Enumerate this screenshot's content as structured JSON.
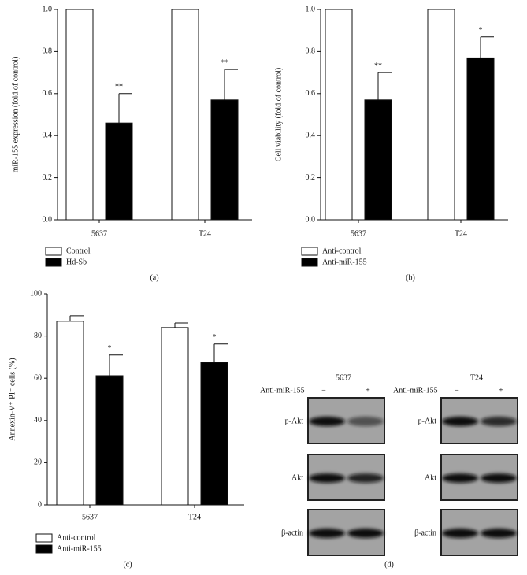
{
  "chart_data": [
    {
      "type": "bar",
      "panel_label": "(a)",
      "y_label": "miR-155 expression (fold of control)",
      "categories": [
        "5637",
        "T24"
      ],
      "series": [
        {
          "name": "Control",
          "color": "#ffffff",
          "values": [
            1.0,
            1.0
          ]
        },
        {
          "name": "Hd-Sb",
          "color": "#000000",
          "values": [
            0.46,
            0.57
          ],
          "errors": [
            0.14,
            0.145
          ],
          "annotations": [
            "**",
            "**"
          ]
        }
      ],
      "ylim": [
        0,
        1.0
      ],
      "yticks": [
        {
          "value": 0,
          "label": "0.0"
        },
        0.2,
        0.4,
        0.6,
        0.8,
        {
          "value": 1,
          "label": "1.0"
        }
      ],
      "grid": false
    },
    {
      "type": "bar",
      "panel_label": "(b)",
      "y_label": "Cell viability (fold of control)",
      "categories": [
        "5637",
        "T24"
      ],
      "series": [
        {
          "name": "Anti-control",
          "color": "#ffffff",
          "values": [
            1.0,
            1.0
          ]
        },
        {
          "name": "Anti-miR-155",
          "color": "#000000",
          "values": [
            0.57,
            0.77
          ],
          "errors": [
            0.13,
            0.1
          ],
          "annotations": [
            "**",
            "*"
          ]
        }
      ],
      "ylim": [
        0,
        1.0
      ],
      "yticks": [
        {
          "value": 0,
          "label": "0.0"
        },
        0.2,
        0.4,
        0.6,
        0.8,
        {
          "value": 1,
          "label": "1.0"
        }
      ],
      "grid": false
    },
    {
      "type": "bar",
      "panel_label": "(c)",
      "y_label": "Annexin-V⁺ PI⁻ cells (%)",
      "categories": [
        "5637",
        "T24"
      ],
      "series": [
        {
          "name": "Anti-control",
          "color": "#ffffff",
          "values": [
            87,
            84
          ],
          "errors": [
            2.6,
            2.2
          ]
        },
        {
          "name": "Anti-miR-155",
          "color": "#000000",
          "values": [
            61.2,
            67.5
          ],
          "errors": [
            9.8,
            8.7
          ],
          "annotations": [
            "*",
            "*"
          ]
        }
      ],
      "ylim": [
        0,
        100
      ],
      "yticks": [
        0,
        20,
        40,
        60,
        80,
        100
      ],
      "grid": false
    }
  ],
  "panel_d": {
    "panel_label": "(d)",
    "blots": [
      {
        "cell_line": "5637",
        "treatment_label": "Anti-miR-155",
        "lanes": [
          "−",
          "+"
        ],
        "rows": [
          "p-Akt",
          "Akt",
          "β-actin"
        ]
      },
      {
        "cell_line": "T24",
        "treatment_label": "Anti-miR-155",
        "lanes": [
          "−",
          "+"
        ],
        "rows": [
          "p-Akt",
          "Akt",
          "β-actin"
        ]
      }
    ]
  }
}
